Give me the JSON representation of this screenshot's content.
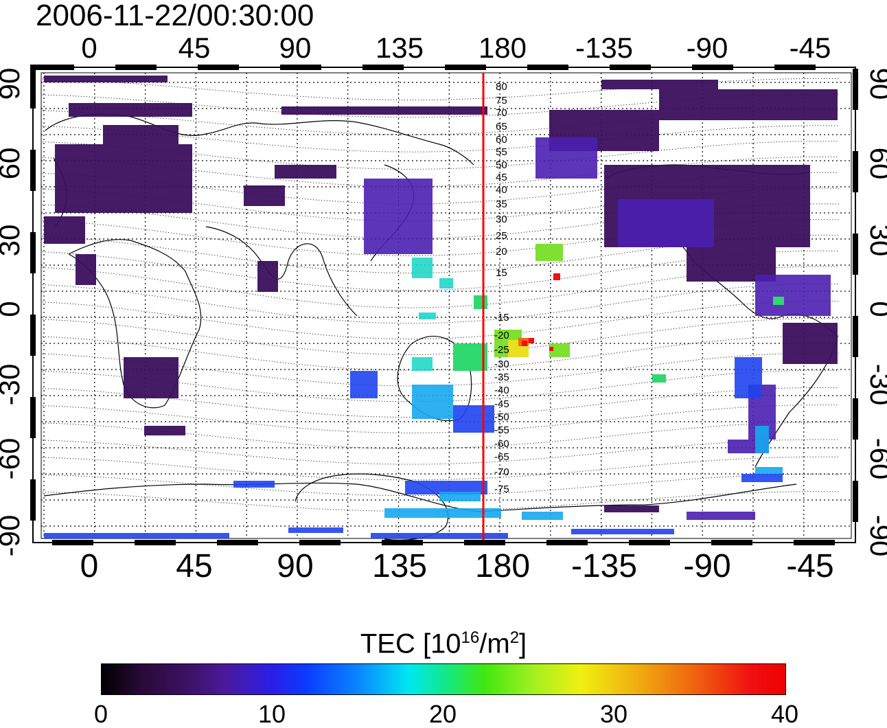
{
  "timestamp": "2006-11-22/00:30:00",
  "map": {
    "top_lon_labels": [
      "0",
      "45",
      "90",
      "135",
      "180",
      "-135",
      "-90",
      "-45"
    ],
    "bottom_lon_labels": [
      "0",
      "45",
      "90",
      "135",
      "180",
      "-135",
      "-90",
      "-45"
    ],
    "lat_labels": [
      "90",
      "60",
      "30",
      "0",
      "-30",
      "-60",
      "-90"
    ],
    "contour_labels_north": [
      "80",
      "75",
      "70",
      "65",
      "60",
      "55",
      "50",
      "45",
      "40",
      "35",
      "30",
      "25",
      "20",
      "15"
    ],
    "contour_labels_south": [
      "-15",
      "-20",
      "-25",
      "-30",
      "-35",
      "-40",
      "-45",
      "-50",
      "-55",
      "-60",
      "-65",
      "-70",
      "-75"
    ],
    "meridian_line_color": "#ff0000"
  },
  "colorbar": {
    "title_prefix": "TEC  [10",
    "title_exp1": "16",
    "title_mid": "/m",
    "title_exp2": "2",
    "title_suffix": "]",
    "ticks": [
      "0",
      "10",
      "20",
      "30",
      "40"
    ],
    "range": [
      0,
      40
    ]
  }
}
